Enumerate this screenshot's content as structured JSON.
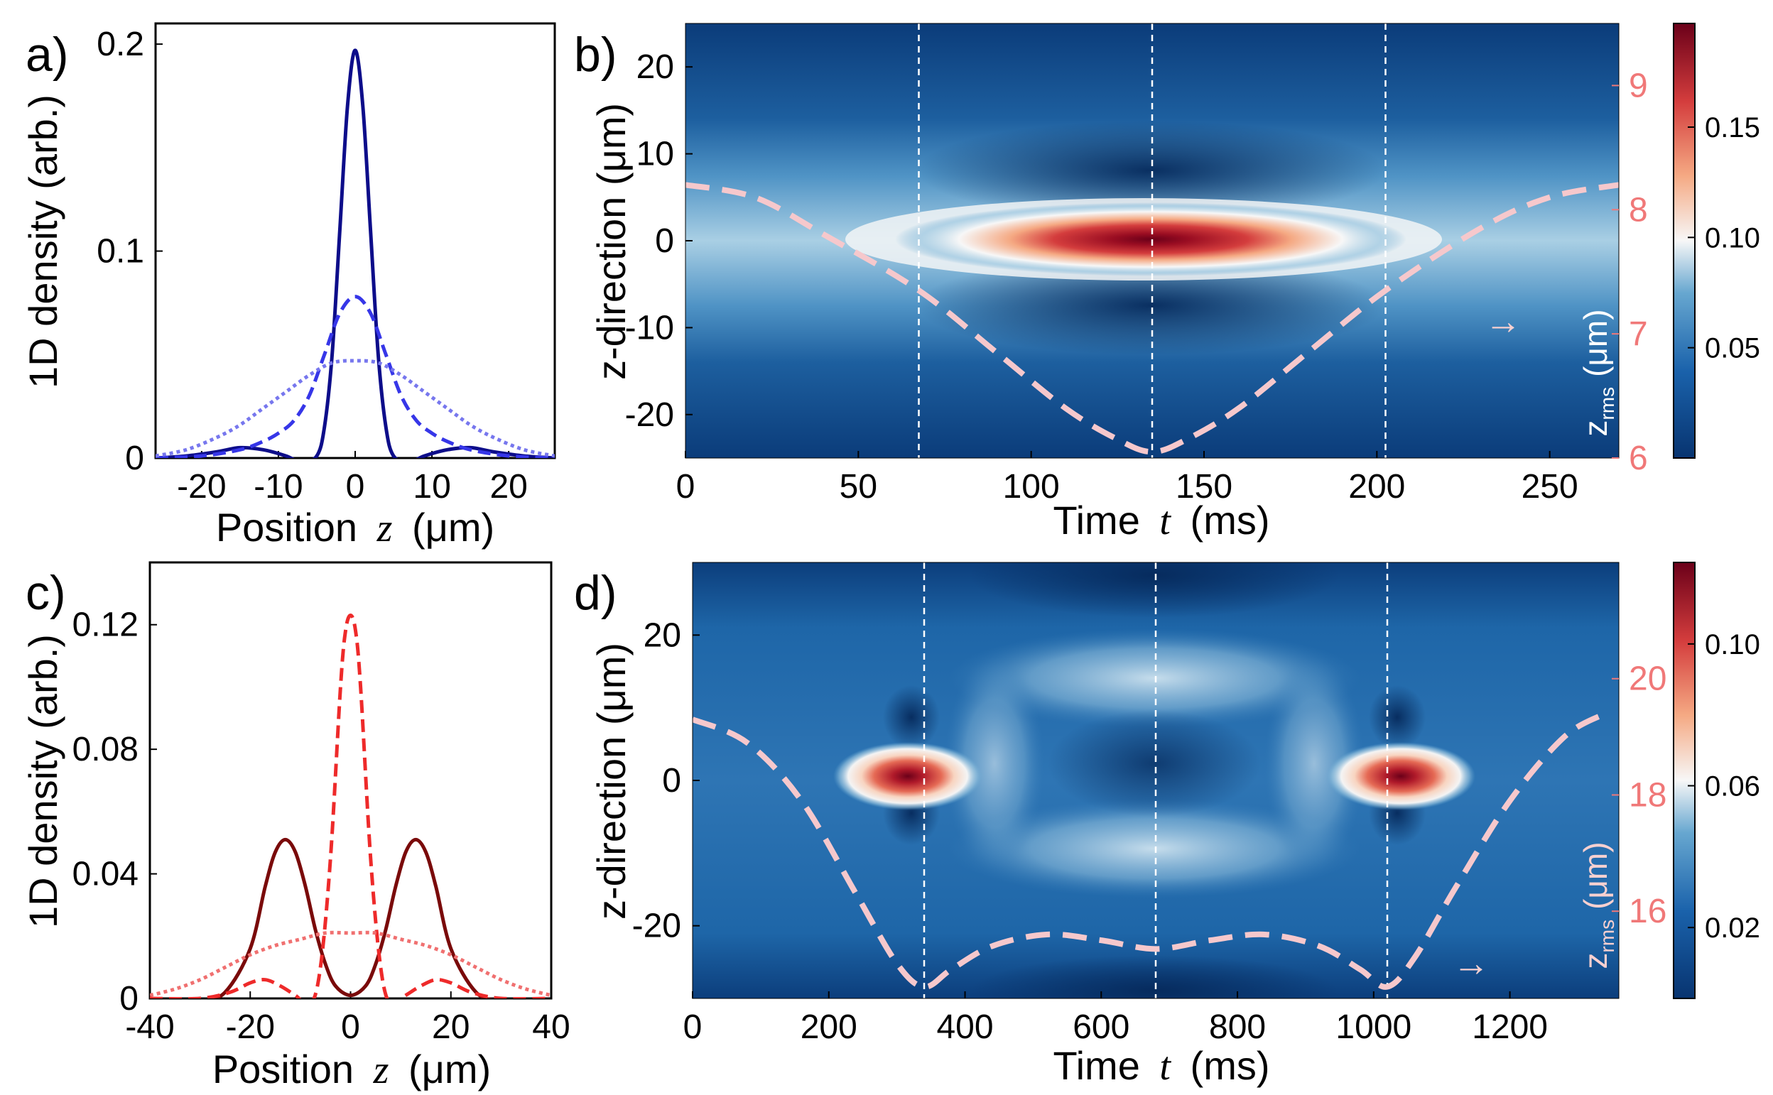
{
  "chart_data": [
    {
      "panel": "a)",
      "type": "line",
      "xlabel": "Position",
      "xlabel_var": "z",
      "xlabel_unit": "(μm)",
      "ylabel": "1D density (arb.)",
      "xlim": [
        -26,
        26
      ],
      "ylim": [
        0,
        0.21
      ],
      "xticks": [
        -20,
        -10,
        0,
        10,
        20
      ],
      "xtick_labels": [
        "-20",
        "-10",
        "0",
        "10",
        "20"
      ],
      "yticks": [
        0,
        0.1,
        0.2
      ],
      "ytick_labels": [
        "0",
        "0.1",
        "0.2"
      ],
      "series": [
        {
          "name": "solid",
          "style": "solid",
          "color": "#0d0d8a",
          "x": [
            -26,
            -22,
            -18,
            -15,
            -12,
            -9,
            -7,
            -5,
            -4,
            -3,
            -2,
            -1,
            0,
            1,
            2,
            3,
            4,
            5,
            7,
            9,
            12,
            15,
            18,
            22,
            26
          ],
          "y": [
            0,
            0.001,
            0.003,
            0.005,
            0.004,
            0.001,
            -0.002,
            0.001,
            0.015,
            0.05,
            0.11,
            0.17,
            0.197,
            0.17,
            0.11,
            0.05,
            0.015,
            0.001,
            -0.002,
            0.001,
            0.004,
            0.005,
            0.003,
            0.001,
            0
          ]
        },
        {
          "name": "dashed",
          "style": "dashed",
          "color": "#3636e8",
          "x": [
            -26,
            -20,
            -15,
            -12,
            -10,
            -8,
            -6,
            -4,
            -2,
            0,
            2,
            4,
            6,
            8,
            10,
            12,
            15,
            20,
            26
          ],
          "y": [
            0,
            0.001,
            0.004,
            0.008,
            0.012,
            0.018,
            0.03,
            0.05,
            0.07,
            0.078,
            0.07,
            0.05,
            0.03,
            0.018,
            0.012,
            0.008,
            0.004,
            0.001,
            0
          ]
        },
        {
          "name": "dotted",
          "style": "dotted",
          "color": "#7777ee",
          "x": [
            -26,
            -22,
            -18,
            -15,
            -12,
            -9,
            -6,
            -3,
            0,
            3,
            6,
            9,
            12,
            15,
            18,
            22,
            26
          ],
          "y": [
            0.001,
            0.004,
            0.01,
            0.016,
            0.024,
            0.032,
            0.04,
            0.046,
            0.047,
            0.046,
            0.04,
            0.032,
            0.024,
            0.016,
            0.01,
            0.004,
            0.001
          ]
        }
      ]
    },
    {
      "panel": "b)",
      "type": "heatmap",
      "xlabel": "Time",
      "xlabel_var": "t",
      "xlabel_unit": "(ms)",
      "ylabel": "z-direction (μm)",
      "xlim": [
        0,
        270
      ],
      "ylim": [
        -25,
        25
      ],
      "xticks": [
        0,
        50,
        100,
        150,
        200,
        250
      ],
      "xtick_labels": [
        "0",
        "50",
        "100",
        "150",
        "200",
        "250"
      ],
      "yticks": [
        -20,
        -10,
        0,
        10,
        20
      ],
      "ytick_labels": [
        "-20",
        "-10",
        "0",
        "10",
        "20"
      ],
      "vlines": [
        67.5,
        135,
        202.5
      ],
      "right_axis": {
        "label": "z",
        "label_sub": "rms",
        "unit": "(μm)",
        "ylim": [
          6,
          9.5
        ],
        "ticks": [
          6,
          7,
          8,
          9
        ],
        "tick_labels": [
          "6",
          "7",
          "8",
          "9"
        ],
        "color": "#f07878"
      },
      "zrms_curve": {
        "x": [
          0,
          20,
          40,
          67.5,
          90,
          110,
          125,
          135,
          145,
          160,
          180,
          202.5,
          230,
          250,
          270
        ],
        "y": [
          8.2,
          8.1,
          7.8,
          7.35,
          6.85,
          6.4,
          6.15,
          6.05,
          6.15,
          6.4,
          6.85,
          7.35,
          7.85,
          8.1,
          8.2
        ]
      },
      "colorbar": {
        "ticks": [
          0.05,
          0.1,
          0.15
        ],
        "tick_labels": [
          "0.05",
          "0.10",
          "0.15"
        ],
        "range": [
          0,
          0.197
        ]
      },
      "arrow": "→"
    },
    {
      "panel": "c)",
      "type": "line",
      "xlabel": "Position",
      "xlabel_var": "z",
      "xlabel_unit": "(μm)",
      "ylabel": "1D density (arb.)",
      "xlim": [
        -40,
        40
      ],
      "ylim": [
        0,
        0.14
      ],
      "xticks": [
        -40,
        -20,
        0,
        20,
        40
      ],
      "xtick_labels": [
        "-40",
        "-20",
        "0",
        "20",
        "40"
      ],
      "yticks": [
        0,
        0.04,
        0.08,
        0.12
      ],
      "ytick_labels": [
        "0",
        "0.04",
        "0.08",
        "0.12"
      ],
      "series": [
        {
          "name": "solid",
          "style": "solid",
          "color": "#7a0a0a",
          "x": [
            -40,
            -35,
            -30,
            -25,
            -20,
            -17,
            -15,
            -13,
            -11,
            -9,
            -7,
            -5,
            -3,
            0,
            3,
            5,
            7,
            9,
            11,
            13,
            15,
            17,
            20,
            25,
            30,
            35,
            40
          ],
          "y": [
            -0.004,
            -0.003,
            -0.001,
            0.002,
            0.016,
            0.036,
            0.047,
            0.051,
            0.047,
            0.036,
            0.022,
            0.011,
            0.004,
            0.001,
            0.004,
            0.011,
            0.022,
            0.036,
            0.047,
            0.051,
            0.047,
            0.036,
            0.016,
            0.002,
            -0.001,
            -0.003,
            -0.004
          ]
        },
        {
          "name": "dashed",
          "style": "dashed",
          "color": "#ee2a2a",
          "x": [
            -40,
            -30,
            -24,
            -20,
            -17,
            -14,
            -11,
            -8,
            -6,
            -4,
            -2,
            -1,
            0,
            1,
            2,
            4,
            6,
            8,
            11,
            14,
            17,
            20,
            24,
            30,
            40
          ],
          "y": [
            0,
            0,
            0.002,
            0.005,
            0.006,
            0.004,
            0.001,
            -0.002,
            0.01,
            0.045,
            0.1,
            0.118,
            0.123,
            0.118,
            0.1,
            0.045,
            0.01,
            -0.002,
            0.001,
            0.004,
            0.006,
            0.005,
            0.002,
            0,
            0
          ]
        },
        {
          "name": "dotted",
          "style": "dotted",
          "color": "#f07070",
          "x": [
            -40,
            -35,
            -30,
            -25,
            -20,
            -15,
            -10,
            -5,
            0,
            5,
            10,
            15,
            20,
            25,
            30,
            35,
            40
          ],
          "y": [
            0.001,
            0.003,
            0.006,
            0.01,
            0.014,
            0.017,
            0.019,
            0.021,
            0.021,
            0.021,
            0.019,
            0.017,
            0.014,
            0.01,
            0.006,
            0.003,
            0.001
          ]
        }
      ]
    },
    {
      "panel": "d)",
      "type": "heatmap",
      "xlabel": "Time",
      "xlabel_var": "t",
      "xlabel_unit": "(ms)",
      "ylabel": "z-direction (μm)",
      "xlim": [
        0,
        1360
      ],
      "ylim": [
        -30,
        30
      ],
      "xticks": [
        0,
        200,
        400,
        600,
        800,
        1000,
        1200
      ],
      "xtick_labels": [
        "0",
        "200",
        "400",
        "600",
        "800",
        "1000",
        "1200"
      ],
      "yticks": [
        -20,
        0,
        20
      ],
      "ytick_labels": [
        "-20",
        "0",
        "20"
      ],
      "vlines": [
        340,
        680,
        1020
      ],
      "right_axis": {
        "label": "z",
        "label_sub": "rms",
        "unit": "(μm)",
        "ylim": [
          14.5,
          22
        ],
        "ticks": [
          16,
          18,
          20
        ],
        "tick_labels": [
          "16",
          "18",
          "20"
        ],
        "color": "#f07878"
      },
      "zrms_curve": {
        "x": [
          0,
          80,
          160,
          240,
          300,
          340,
          380,
          440,
          520,
          600,
          680,
          760,
          840,
          920,
          980,
          1020,
          1060,
          1120,
          1200,
          1280,
          1340
        ],
        "y": [
          19.3,
          18.9,
          17.9,
          16.3,
          15.1,
          14.7,
          15.0,
          15.4,
          15.6,
          15.5,
          15.35,
          15.5,
          15.6,
          15.4,
          15.0,
          14.7,
          15.2,
          16.4,
          17.9,
          19.0,
          19.4
        ]
      },
      "colorbar": {
        "ticks": [
          0.02,
          0.06,
          0.1
        ],
        "tick_labels": [
          "0.02",
          "0.06",
          "0.10"
        ],
        "range": [
          0,
          0.123
        ]
      },
      "arrow": "→"
    }
  ]
}
